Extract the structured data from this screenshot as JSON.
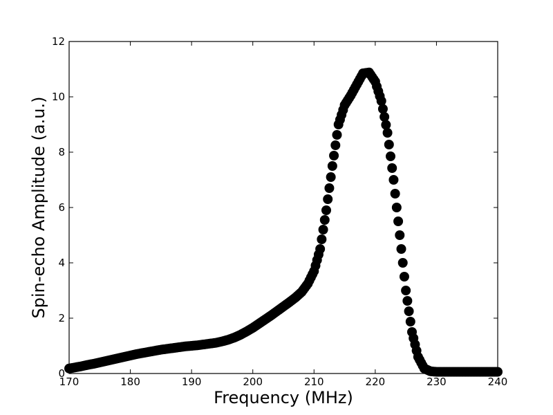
{
  "chart_data": {
    "type": "scatter",
    "title": "",
    "xlabel": "Frequency (MHz)",
    "ylabel": "Spin-echo Amplitude (a.u.)",
    "xlim": [
      170,
      240
    ],
    "ylim": [
      0,
      12
    ],
    "x_ticks": [
      170,
      180,
      190,
      200,
      210,
      220,
      230,
      240
    ],
    "y_ticks": [
      0,
      2,
      4,
      6,
      8,
      10,
      12
    ],
    "x_tick_labels": [
      "170",
      "180",
      "190",
      "200",
      "210",
      "220",
      "230",
      "240"
    ],
    "y_tick_labels": [
      "0",
      "2",
      "4",
      "6",
      "8",
      "10",
      "12"
    ],
    "grid": false,
    "legend": "none",
    "marker_color": "#000000",
    "series": [
      {
        "x": [
          170,
          171,
          172,
          173,
          174,
          175,
          176,
          177,
          178,
          179,
          180,
          181,
          182,
          183,
          184,
          185,
          186,
          187,
          188,
          189,
          190,
          191,
          192,
          193,
          194,
          195,
          196,
          197,
          198,
          199,
          200,
          201,
          202,
          203,
          204,
          205,
          206,
          207,
          208,
          209,
          210,
          211,
          212,
          213,
          214,
          215,
          216,
          217,
          218,
          219,
          220,
          221,
          222,
          223,
          224,
          225,
          226,
          227,
          228,
          229,
          230,
          231,
          232,
          233,
          234,
          235,
          236,
          237,
          238,
          239,
          240
        ],
        "values": [
          0.18,
          0.22,
          0.26,
          0.31,
          0.35,
          0.4,
          0.45,
          0.5,
          0.55,
          0.6,
          0.65,
          0.7,
          0.74,
          0.78,
          0.82,
          0.86,
          0.89,
          0.92,
          0.95,
          0.98,
          1.0,
          1.02,
          1.05,
          1.08,
          1.11,
          1.16,
          1.22,
          1.3,
          1.4,
          1.52,
          1.65,
          1.8,
          1.95,
          2.1,
          2.26,
          2.42,
          2.58,
          2.75,
          2.95,
          3.25,
          3.7,
          4.5,
          5.9,
          7.5,
          9.0,
          9.7,
          10.05,
          10.45,
          10.85,
          10.88,
          10.55,
          9.85,
          8.7,
          7.0,
          5.0,
          3.0,
          1.5,
          0.6,
          0.18,
          0.08,
          0.06,
          0.06,
          0.06,
          0.06,
          0.06,
          0.06,
          0.06,
          0.06,
          0.06,
          0.06,
          0.06
        ]
      }
    ]
  }
}
